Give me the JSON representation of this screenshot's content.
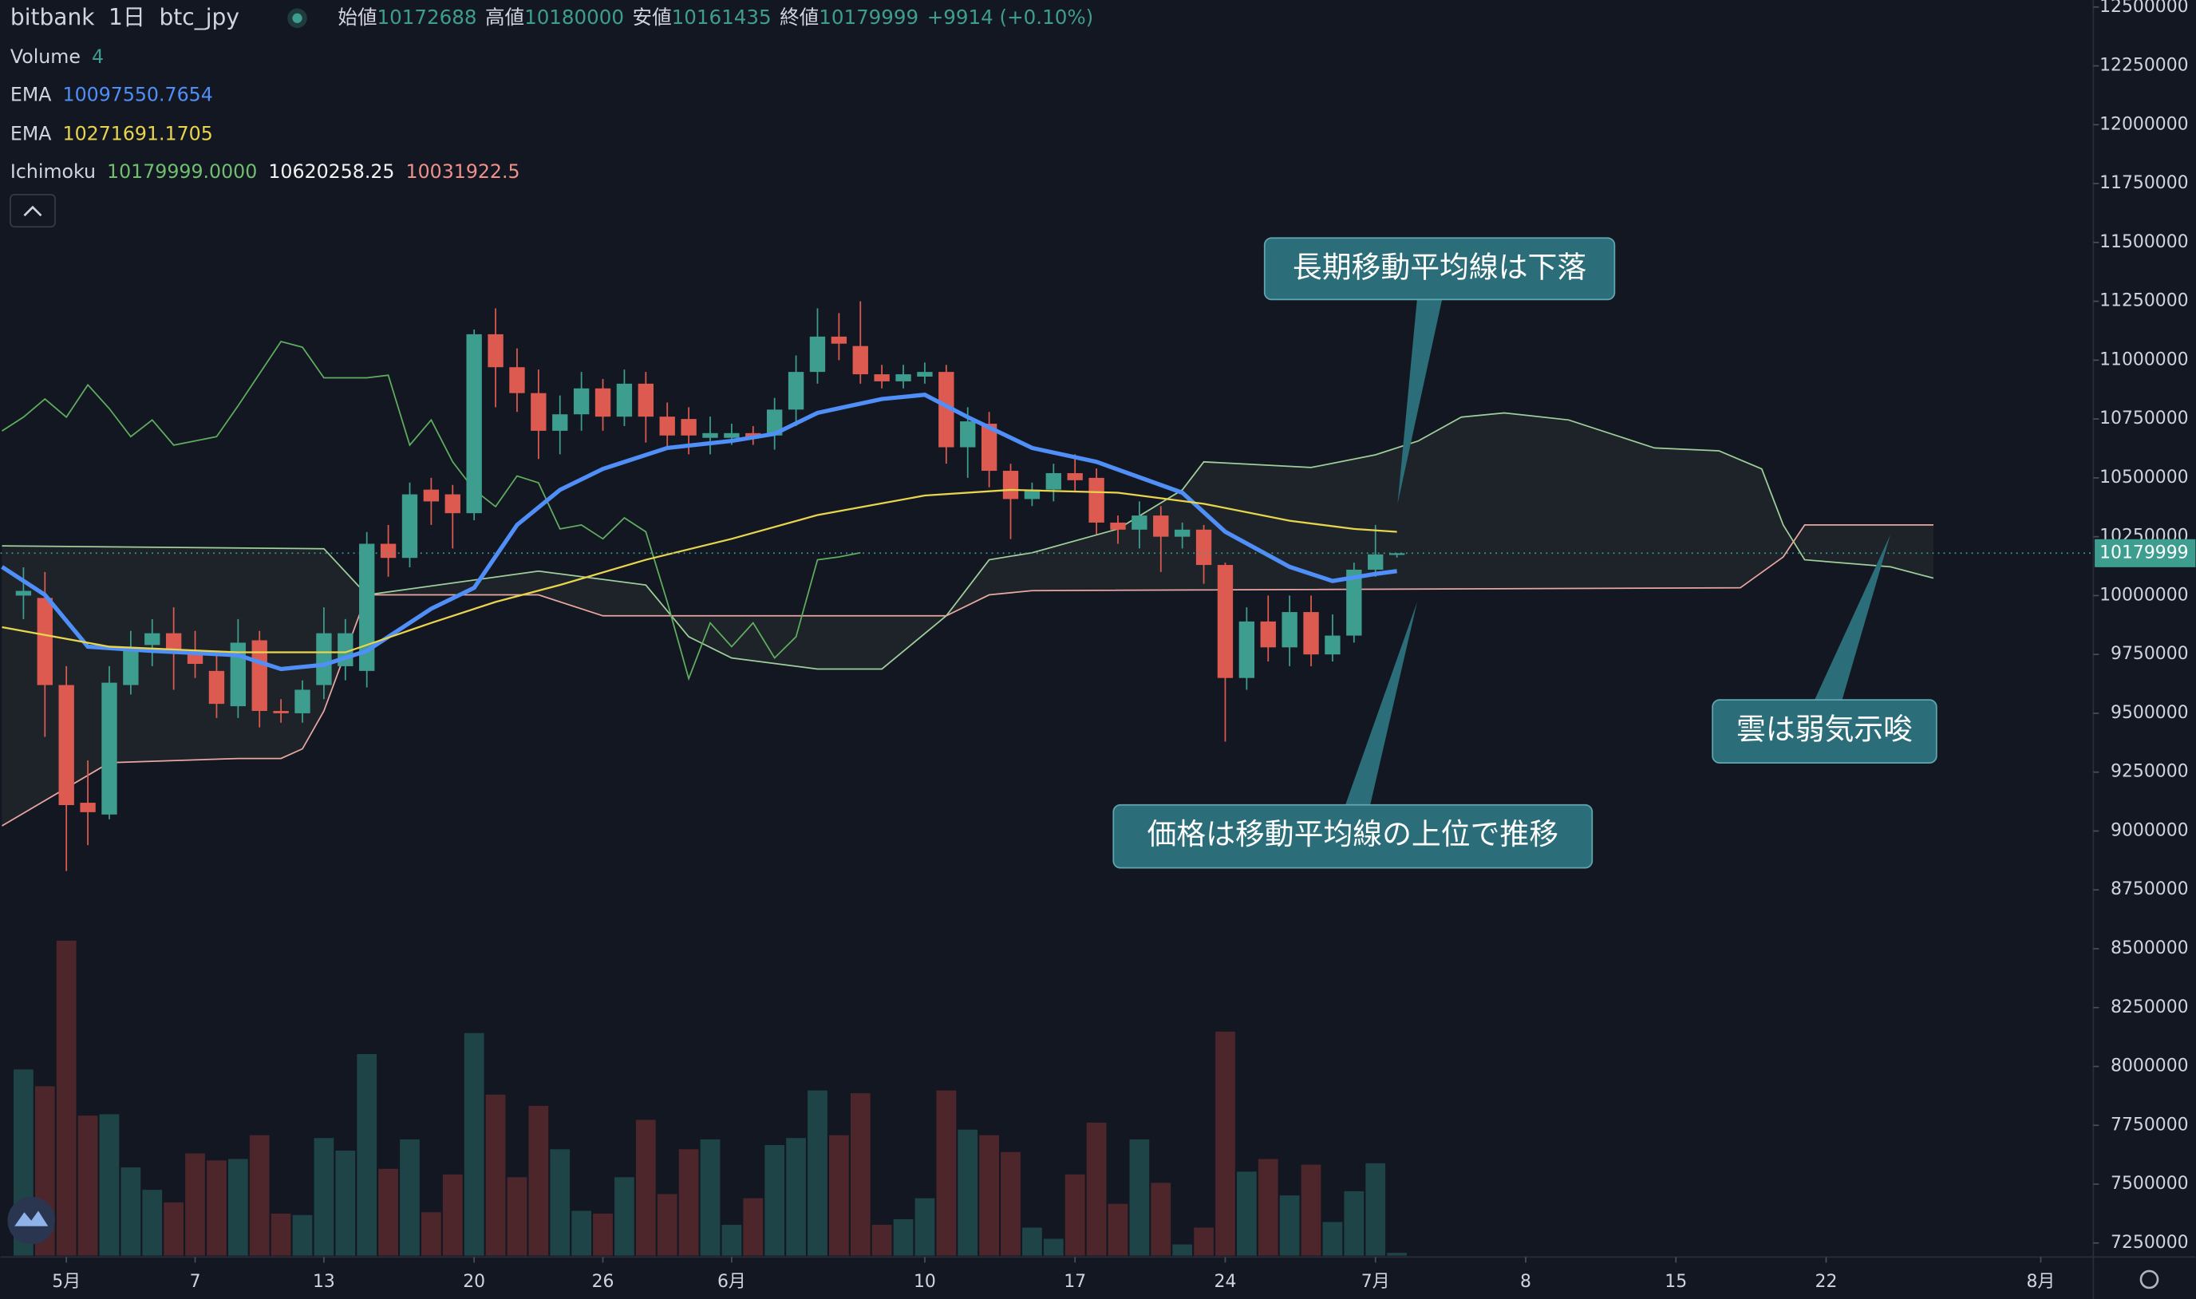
{
  "chart_data": {
    "type": "candlestick",
    "exchange": "bitbank",
    "interval": "1日",
    "symbol": "btc_jpy",
    "quote": {
      "open_label": "始値",
      "open": 10172688,
      "high_label": "高値",
      "high": 10180000,
      "low_label": "安値",
      "low": 10161435,
      "close_label": "終値",
      "close": 10179999,
      "change": "+9914 (+0.10%)"
    },
    "up_color": "#3d9d8e",
    "down_color": "#dd5a50",
    "volume_up_color": "#1e4447",
    "volume_down_color": "#4d262b",
    "x": [
      -2,
      -1,
      0,
      1,
      2,
      3,
      4,
      5,
      6,
      7,
      8,
      9,
      10,
      11,
      12,
      13,
      14,
      15,
      16,
      17,
      18,
      19,
      20,
      21,
      22,
      23,
      24,
      25,
      26,
      27,
      28,
      29,
      30,
      31,
      32,
      33,
      34,
      35,
      36,
      37,
      38,
      39,
      40,
      41,
      42,
      43,
      44,
      45,
      46,
      47,
      48,
      49,
      50,
      51,
      52,
      53,
      54,
      55,
      56,
      57,
      58,
      59,
      60,
      61,
      62
    ],
    "open": [
      10000000,
      9990000,
      9620000,
      9120000,
      9070000,
      9620000,
      9790000,
      9840000,
      9760000,
      9680000,
      9530000,
      9810000,
      9510000,
      9500000,
      9620000,
      9700000,
      9680000,
      10220000,
      10160000,
      10450000,
      10430000,
      10350000,
      11110000,
      10970000,
      10860000,
      10700000,
      10770000,
      10880000,
      10760000,
      10900000,
      10760000,
      10750000,
      10670000,
      10670000,
      10690000,
      10680000,
      10790000,
      10950000,
      11100000,
      11060000,
      10940000,
      10910000,
      10930000,
      10950000,
      10630000,
      10730000,
      10530000,
      10410000,
      10450000,
      10520000,
      10500000,
      10310000,
      10280000,
      10340000,
      10250000,
      10280000,
      10130000,
      9650000,
      9890000,
      9780000,
      9930000,
      9750000,
      9830000,
      10110000,
      10172688
    ],
    "high": [
      10120000,
      10100000,
      9700000,
      9300000,
      9700000,
      9850000,
      9900000,
      9950000,
      9850000,
      9750000,
      9900000,
      9850000,
      9560000,
      9640000,
      9950000,
      9900000,
      10270000,
      10300000,
      10480000,
      10500000,
      10470000,
      11130000,
      11220000,
      11050000,
      10960000,
      10850000,
      10950000,
      10920000,
      10960000,
      10950000,
      10820000,
      10800000,
      10760000,
      10730000,
      10720000,
      10840000,
      11020000,
      11220000,
      11200000,
      11250000,
      10980000,
      10980000,
      10990000,
      10980000,
      10800000,
      10780000,
      10560000,
      10480000,
      10560000,
      10600000,
      10540000,
      10340000,
      10400000,
      10380000,
      10310000,
      10300000,
      10140000,
      9950000,
      10000000,
      10000000,
      10000000,
      9920000,
      10140000,
      10300000,
      10180000
    ],
    "low": [
      9900000,
      9400000,
      8830000,
      8940000,
      9050000,
      9580000,
      9700000,
      9600000,
      9650000,
      9480000,
      9480000,
      9440000,
      9460000,
      9460000,
      9560000,
      9640000,
      9610000,
      10080000,
      10120000,
      10300000,
      10200000,
      10320000,
      10800000,
      10780000,
      10580000,
      10600000,
      10700000,
      10700000,
      10720000,
      10650000,
      10620000,
      10600000,
      10600000,
      10640000,
      10640000,
      10620000,
      10720000,
      10900000,
      11000000,
      10900000,
      10880000,
      10880000,
      10900000,
      10560000,
      10500000,
      10460000,
      10240000,
      10380000,
      10400000,
      10440000,
      10260000,
      10220000,
      10200000,
      10100000,
      10200000,
      10050000,
      9380000,
      9600000,
      9720000,
      9700000,
      9700000,
      9720000,
      9800000,
      10080000,
      10161435
    ],
    "close": [
      10020000,
      9620000,
      9110000,
      9080000,
      9630000,
      9780000,
      9840000,
      9760000,
      9710000,
      9540000,
      9800000,
      9510000,
      9500000,
      9600000,
      9840000,
      9840000,
      10220000,
      10160000,
      10430000,
      10400000,
      10350000,
      11110000,
      10970000,
      10860000,
      10700000,
      10770000,
      10880000,
      10760000,
      10900000,
      10760000,
      10680000,
      10680000,
      10690000,
      10690000,
      10670000,
      10790000,
      10950000,
      11100000,
      11070000,
      10940000,
      10910000,
      10940000,
      10950000,
      10630000,
      10740000,
      10530000,
      10410000,
      10450000,
      10520000,
      10490000,
      10310000,
      10280000,
      10340000,
      10250000,
      10280000,
      10130000,
      9650000,
      9890000,
      9780000,
      9930000,
      9750000,
      9830000,
      10110000,
      10175000,
      10179999
    ],
    "volume": {
      "name": "Volume",
      "last": 4,
      "values": [
        266,
        242,
        450,
        200,
        202,
        126,
        94,
        76,
        146,
        136,
        138,
        172,
        60,
        58,
        168,
        150,
        288,
        124,
        166,
        62,
        116,
        318,
        230,
        112,
        214,
        152,
        64,
        60,
        112,
        194,
        88,
        152,
        166,
        44,
        82,
        158,
        168,
        236,
        172,
        232,
        44,
        52,
        82,
        236,
        180,
        172,
        148,
        40,
        24,
        116,
        190,
        74,
        166,
        104,
        16,
        40,
        320,
        120,
        138,
        86,
        130,
        48,
        92,
        132,
        4
      ]
    },
    "lines": [
      {
        "name": "EMA",
        "color": "#4f8ff7",
        "width": 3,
        "last": 10097550.7654,
        "x": [
          -3,
          -1,
          1,
          4,
          8,
          10,
          12,
          14,
          17,
          19,
          21,
          23,
          25,
          28,
          31,
          33,
          35,
          38,
          40,
          42,
          45,
          48,
          52,
          54,
          57,
          59,
          61,
          62
        ],
        "values": [
          10122000,
          10003000,
          9783000,
          9765000,
          9747000,
          9688000,
          9706000,
          9765000,
          9944000,
          10033000,
          10300000,
          10449000,
          10538000,
          10627000,
          10657000,
          10687000,
          10776000,
          10835000,
          10853000,
          10758000,
          10627000,
          10568000,
          10437000,
          10271000,
          10122000,
          10062000,
          10092000,
          10104000
        ]
      },
      {
        "name": "EMA",
        "color": "#e8d44d",
        "width": 1.3,
        "last": 10271691.1705,
        "x": [
          -3,
          2,
          8,
          13,
          17,
          20,
          23,
          27,
          31,
          35,
          40,
          44,
          49,
          53,
          57,
          60,
          62
        ],
        "values": [
          9866000,
          9783000,
          9759000,
          9759000,
          9884000,
          9973000,
          10045000,
          10152000,
          10241000,
          10342000,
          10425000,
          10449000,
          10437000,
          10390000,
          10318000,
          10283000,
          10271000
        ]
      }
    ],
    "ichimoku": {
      "name": "Ichimoku",
      "values": [
        {
          "value": 10179999,
          "label": "10179999.0000"
        },
        10620258.25,
        10031922.5
      ],
      "colors": [
        "#6fbf6f",
        "#f2f2f2",
        "#f0908a"
      ],
      "lagging": {
        "color": "#5fae5f",
        "x": [
          -3,
          -2,
          -1,
          0,
          1,
          2,
          3,
          4,
          5,
          7,
          8,
          10,
          11,
          12,
          14,
          15,
          16,
          17,
          18,
          19,
          20,
          21,
          22,
          23,
          24,
          25,
          26,
          27,
          28,
          29,
          30,
          31,
          32,
          33,
          34,
          35,
          36,
          37
        ],
        "values": [
          10699000,
          10758000,
          10835000,
          10758000,
          10895000,
          10794000,
          10675000,
          10746000,
          10639000,
          10675000,
          10806000,
          11079000,
          11055000,
          10925000,
          10925000,
          10936000,
          10639000,
          10746000,
          10568000,
          10449000,
          10378000,
          10508000,
          10479000,
          10283000,
          10300000,
          10241000,
          10330000,
          10271000,
          9973000,
          9647000,
          9884000,
          9783000,
          9884000,
          9735000,
          9825000,
          10152000,
          10164000,
          10182000
        ]
      },
      "span_a": {
        "color": "#9fcf9a",
        "x": [
          -3,
          12,
          14,
          22,
          27,
          29,
          31,
          35,
          38,
          41,
          43,
          45,
          49,
          52,
          53,
          58,
          61,
          63,
          65,
          67,
          70,
          74,
          77,
          79,
          80,
          81,
          85,
          87
        ],
        "values": [
          10211000,
          10199000,
          10003000,
          10104000,
          10045000,
          9825000,
          9735000,
          9688000,
          9688000,
          9914000,
          10152000,
          10182000,
          10283000,
          10449000,
          10568000,
          10544000,
          10598000,
          10657000,
          10758000,
          10776000,
          10746000,
          10627000,
          10615000,
          10538000,
          10300000,
          10152000,
          10122000,
          10074000
        ]
      },
      "span_b": {
        "color": "#e8a7a0",
        "x": [
          -3,
          2,
          8,
          10,
          11,
          12,
          14,
          22,
          25,
          41,
          43,
          45,
          78,
          80,
          81,
          87
        ],
        "values": [
          9022000,
          9290000,
          9308000,
          9308000,
          9349000,
          9510000,
          10003000,
          10003000,
          9914000,
          9914000,
          10003000,
          10021000,
          10033000,
          10164000,
          10300000,
          10300000
        ]
      }
    },
    "xlim": [
      -3.07,
      94.45
    ],
    "ylim": [
      7250000,
      12500000
    ],
    "xticks": [
      {
        "value": 0,
        "label": "5月"
      },
      {
        "value": 6,
        "label": "7"
      },
      {
        "value": 12,
        "label": "13"
      },
      {
        "value": 19,
        "label": "20"
      },
      {
        "value": 25,
        "label": "26"
      },
      {
        "value": 31,
        "label": "6月"
      },
      {
        "value": 40,
        "label": "10"
      },
      {
        "value": 47,
        "label": "17"
      },
      {
        "value": 54,
        "label": "24"
      },
      {
        "value": 61,
        "label": "7月"
      },
      {
        "value": 68,
        "label": "8"
      },
      {
        "value": 75,
        "label": "15"
      },
      {
        "value": 82,
        "label": "22"
      },
      {
        "value": 92,
        "label": "8月"
      }
    ],
    "yticks": [
      12500000,
      12250000,
      12000000,
      11750000,
      11500000,
      11250000,
      11000000,
      10750000,
      10500000,
      10250000,
      10000000,
      9750000,
      9500000,
      9250000,
      9000000,
      8750000,
      8500000,
      8250000,
      8000000,
      7750000,
      7500000,
      7250000
    ],
    "annotations": [
      "長期移動平均線は下落",
      "価格は移動平均線の上位で推移",
      "雲は弱気示唆"
    ]
  }
}
